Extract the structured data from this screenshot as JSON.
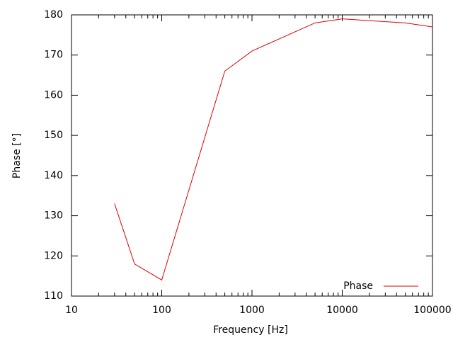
{
  "chart_data": {
    "type": "line",
    "x_label": "Frequency [Hz]",
    "y_label": "Phase [°]",
    "x": [
      30,
      50,
      100,
      500,
      1000,
      5000,
      10000,
      50000,
      100000
    ],
    "series": [
      {
        "name": "Phase",
        "color": "#e00000",
        "values": [
          133,
          118,
          114,
          166,
          171,
          178,
          179,
          178,
          177
        ]
      }
    ],
    "xlim": [
      10,
      100000
    ],
    "xticks": [
      10,
      100,
      1000,
      10000,
      100000
    ],
    "xscale": "log",
    "ylim": [
      110,
      180
    ],
    "yticks": [
      110,
      120,
      130,
      140,
      150,
      160,
      170,
      180
    ],
    "legend": "lower right"
  }
}
